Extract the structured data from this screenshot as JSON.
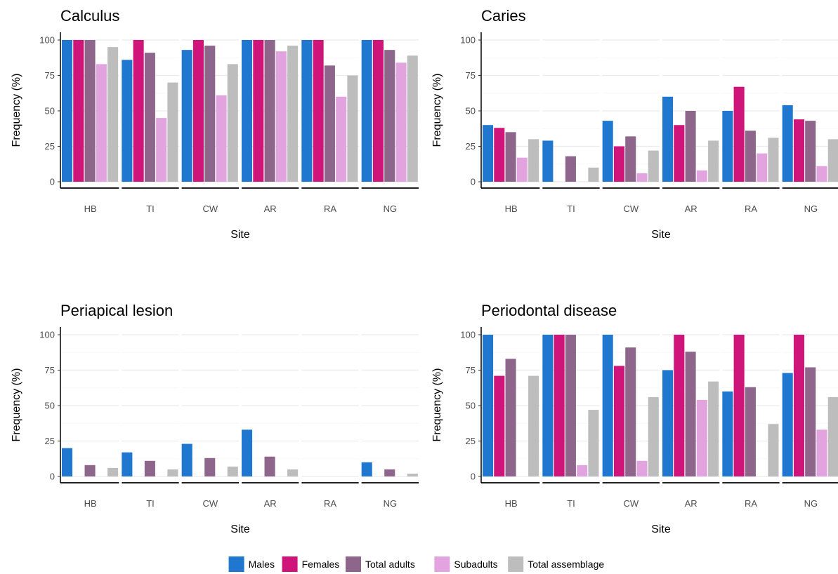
{
  "chart_data": {
    "type": "bar",
    "categories": [
      "HB",
      "TI",
      "CW",
      "AR",
      "RA",
      "NG"
    ],
    "xlabel": "Site",
    "ylabel": "Frequency (%)",
    "ylim": [
      0,
      100
    ],
    "yticks": [
      0,
      25,
      50,
      75,
      100
    ],
    "grid": true,
    "legend_position": "bottom",
    "series": [
      {
        "name": "Males",
        "color": "#1f77d0"
      },
      {
        "name": "Females",
        "color": "#d0157a"
      },
      {
        "name": "Total adults",
        "color": "#8e668c"
      },
      {
        "name": "Subadults",
        "color": "#e2a4de"
      },
      {
        "name": "Total assemblage",
        "color": "#bdbdbd"
      }
    ],
    "panels": [
      {
        "title": "Calculus",
        "values": [
          [
            100,
            100,
            100,
            83,
            95
          ],
          [
            86,
            100,
            91,
            45,
            70
          ],
          [
            93,
            100,
            96,
            61,
            83
          ],
          [
            100,
            100,
            100,
            92,
            96
          ],
          [
            100,
            100,
            82,
            60,
            75
          ],
          [
            100,
            100,
            93,
            84,
            89
          ]
        ]
      },
      {
        "title": "Caries",
        "values": [
          [
            40,
            38,
            35,
            17,
            30
          ],
          [
            29,
            0,
            18,
            0,
            10
          ],
          [
            43,
            25,
            32,
            6,
            22
          ],
          [
            60,
            40,
            50,
            8,
            29
          ],
          [
            50,
            67,
            36,
            20,
            31
          ],
          [
            54,
            44,
            43,
            11,
            30
          ]
        ]
      },
      {
        "title": "Periapical lesion",
        "values": [
          [
            20,
            0,
            8,
            0,
            6
          ],
          [
            17,
            0,
            11,
            0,
            5
          ],
          [
            23,
            0,
            13,
            0,
            7
          ],
          [
            33,
            0,
            14,
            0,
            5
          ],
          [
            0,
            0,
            0,
            0,
            0
          ],
          [
            10,
            0,
            5,
            0,
            2
          ]
        ]
      },
      {
        "title": "Periodontal disease",
        "values": [
          [
            100,
            71,
            83,
            0,
            71
          ],
          [
            100,
            100,
            100,
            8,
            47
          ],
          [
            100,
            78,
            91,
            11,
            56
          ],
          [
            75,
            100,
            88,
            54,
            67
          ],
          [
            60,
            100,
            63,
            0,
            37
          ],
          [
            73,
            100,
            77,
            33,
            56
          ]
        ]
      }
    ]
  }
}
